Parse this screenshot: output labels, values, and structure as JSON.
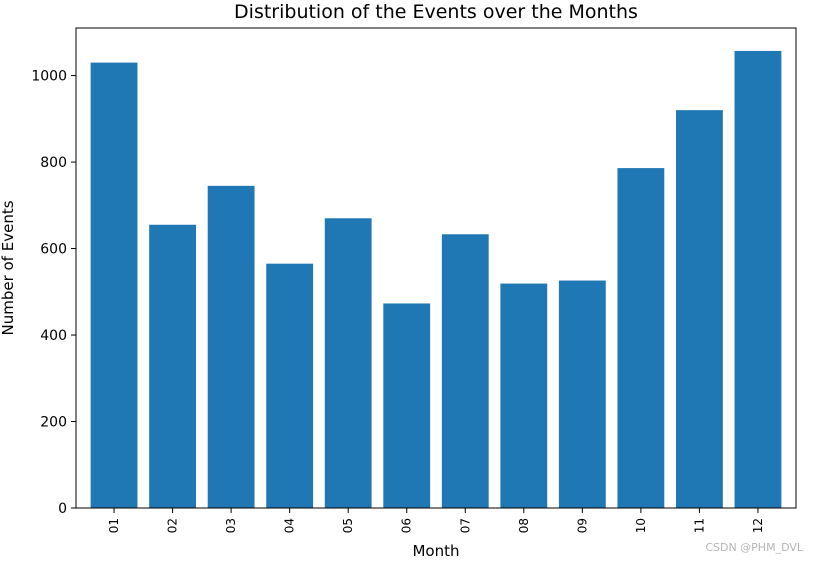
{
  "chart_data": {
    "type": "bar",
    "title": "Distribution of the Events over the Months",
    "xlabel": "Month",
    "ylabel": "Number of Events",
    "categories": [
      "01",
      "02",
      "03",
      "04",
      "05",
      "06",
      "07",
      "08",
      "09",
      "10",
      "11",
      "12"
    ],
    "values": [
      1030,
      655,
      745,
      565,
      670,
      473,
      633,
      519,
      526,
      786,
      920,
      1057
    ],
    "ylim": [
      0,
      1110
    ],
    "yticks": [
      0,
      200,
      400,
      600,
      800,
      1000
    ],
    "bar_color": "#1f77b4",
    "grid": false,
    "xtick_rotation": "vertical"
  },
  "watermark": "CSDN @PHM_DVL"
}
